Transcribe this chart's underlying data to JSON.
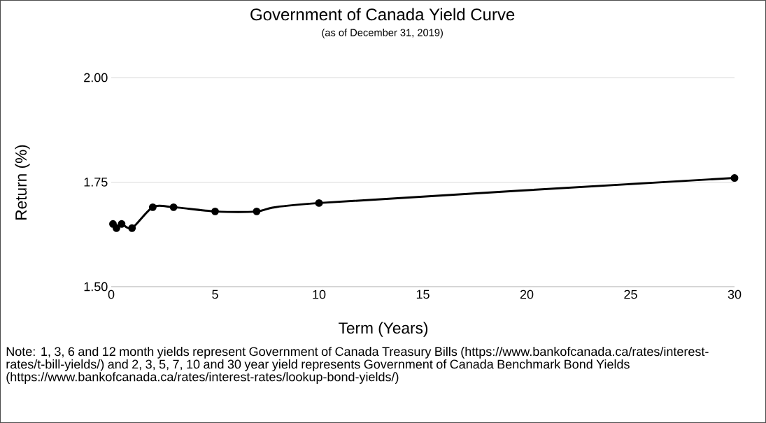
{
  "chart_data": {
    "type": "line",
    "title": "Government of Canada Yield Curve",
    "subtitle": "(as of December 31, 2019)",
    "xlabel": "Term (Years)",
    "ylabel": "Return (%)",
    "x": [
      0.083,
      0.25,
      0.5,
      1,
      2,
      3,
      5,
      7,
      10,
      30
    ],
    "series": [
      {
        "color": "#000000",
        "values": [
          1.65,
          1.64,
          1.65,
          1.64,
          1.69,
          1.69,
          1.68,
          1.68,
          1.7,
          1.76
        ]
      }
    ],
    "xlim": [
      0,
      30
    ],
    "xticks": [
      0,
      5,
      10,
      15,
      20,
      25,
      30
    ],
    "ylim": [
      1.5,
      2.0
    ],
    "yticks": [
      {
        "value": 1.5,
        "label": "1.50"
      },
      {
        "value": 1.75,
        "label": "1.75"
      },
      {
        "value": 2.0,
        "label": "2.00"
      }
    ],
    "grid": "y",
    "marker": "circle",
    "line_style": "solid",
    "annotations": [
      "Note: 1, 3, 6 and 12 month yields represent Government of Canada Treasury Bills (https://www.bankofcanada.ca/rates/interest-rates/t-bill-yields/) and 2, 3, 5, 7, 10 and 30 year yield represents Government of Canada Benchmark Bond Yields (https://www.bankofcanada.ca/rates/interest-rates/lookup-bond-yields/)"
    ]
  }
}
